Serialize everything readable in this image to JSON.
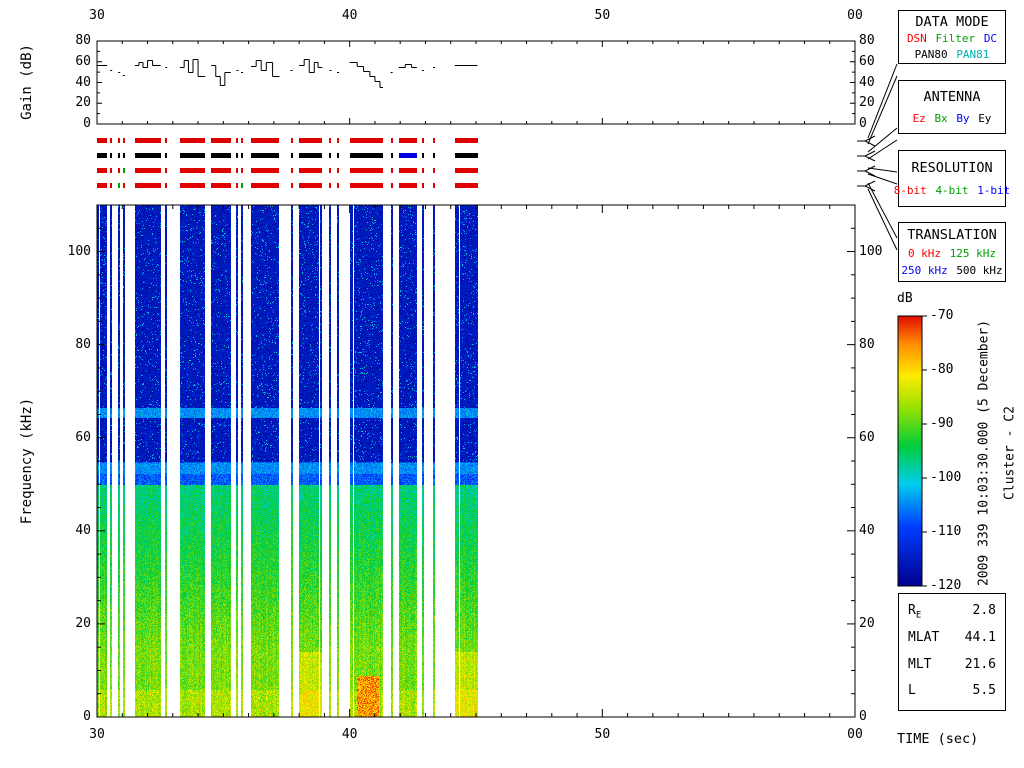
{
  "page": {
    "background": "#ffffff"
  },
  "annotations": {
    "datetime_vertical": "2009 339 10:03:30.000 (5 December)",
    "spacecraft_vertical": "Cluster - C2"
  },
  "legend": {
    "data_mode": {
      "title": "DATA MODE",
      "row1": [
        {
          "text": "DSN",
          "color": "#ff0000"
        },
        {
          "text": "Filter",
          "color": "#00a000"
        },
        {
          "text": "DC",
          "color": "#0000ff"
        }
      ],
      "row2": [
        {
          "text": "PAN80",
          "color": "#000000"
        },
        {
          "text": "PAN81",
          "color": "#00b0b0"
        }
      ]
    },
    "antenna": {
      "title": "ANTENNA",
      "row1": [
        {
          "text": "Ez",
          "color": "#ff0000"
        },
        {
          "text": "Bx",
          "color": "#00a000"
        },
        {
          "text": "By",
          "color": "#0000ff"
        },
        {
          "text": "Ey",
          "color": "#000000"
        }
      ]
    },
    "resolution": {
      "title": "RESOLUTION",
      "row1": [
        {
          "text": "8-bit",
          "color": "#ff0000"
        },
        {
          "text": "4-bit",
          "color": "#00a000"
        },
        {
          "text": "1-bit",
          "color": "#0000ff"
        }
      ]
    },
    "translation": {
      "title": "TRANSLATION",
      "row1": [
        {
          "text": "0 kHz",
          "color": "#ff0000"
        },
        {
          "text": "125 kHz",
          "color": "#00a000"
        }
      ],
      "row2": [
        {
          "text": "250 kHz",
          "color": "#0000ff"
        },
        {
          "text": "500 kHz",
          "color": "#000000"
        }
      ]
    }
  },
  "ephemeris": {
    "rows": [
      {
        "label": "R",
        "sub": "E",
        "value": "2.8"
      },
      {
        "label": "MLAT",
        "sub": "",
        "value": "44.1"
      },
      {
        "label": "MLT",
        "sub": "",
        "value": "21.6"
      },
      {
        "label": "L",
        "sub": "",
        "value": "5.5"
      }
    ]
  },
  "status_rows": [
    {
      "name": "data-mode-activity",
      "color": "#e00000",
      "overrides": []
    },
    {
      "name": "antenna-activity",
      "color": "#000000",
      "overrides": [
        {
          "t0": 41.9,
          "t1": 42.7,
          "color": "#0000e0"
        }
      ]
    },
    {
      "name": "resolution-activity",
      "color": "#e00000",
      "overrides": [
        {
          "t0": 30.95,
          "t1": 31.15,
          "color": "#00a000"
        }
      ]
    },
    {
      "name": "translation-activity",
      "color": "#e00000",
      "overrides": [
        {
          "t0": 30.78,
          "t1": 30.95,
          "color": "#00a000"
        },
        {
          "t0": 35.6,
          "t1": 35.85,
          "color": "#00a000"
        }
      ]
    }
  ],
  "chart_data": [
    {
      "type": "line",
      "name": "gain-panel",
      "ylabel": "Gain (dB)",
      "ylim": [
        0,
        80
      ],
      "yticks": [
        0,
        20,
        40,
        60,
        80
      ],
      "xlim": [
        30,
        60
      ],
      "segments": [
        [
          [
            30.0,
            57
          ],
          [
            30.4,
            57
          ]
        ],
        [
          [
            30.52,
            52
          ],
          [
            30.6,
            52
          ]
        ],
        [
          [
            30.84,
            50
          ],
          [
            30.92,
            50
          ]
        ],
        [
          [
            31.02,
            47
          ],
          [
            31.1,
            47
          ]
        ],
        [
          [
            31.5,
            57
          ],
          [
            31.66,
            60
          ],
          [
            31.82,
            55
          ],
          [
            32.0,
            62
          ],
          [
            32.2,
            57
          ],
          [
            32.52,
            57
          ]
        ],
        [
          [
            32.7,
            55
          ],
          [
            32.78,
            55
          ]
        ],
        [
          [
            33.28,
            55
          ],
          [
            33.45,
            62
          ],
          [
            33.62,
            50
          ],
          [
            33.8,
            63
          ],
          [
            34.0,
            46
          ],
          [
            34.28,
            46
          ]
        ],
        [
          [
            34.52,
            57
          ],
          [
            34.7,
            46
          ],
          [
            34.88,
            38
          ],
          [
            35.06,
            50
          ],
          [
            35.3,
            50
          ]
        ],
        [
          [
            35.52,
            52
          ],
          [
            35.6,
            52
          ]
        ],
        [
          [
            35.7,
            50
          ],
          [
            35.78,
            50
          ]
        ],
        [
          [
            36.1,
            56
          ],
          [
            36.3,
            62
          ],
          [
            36.5,
            52
          ],
          [
            36.7,
            60
          ],
          [
            36.95,
            46
          ],
          [
            37.22,
            46
          ]
        ],
        [
          [
            37.66,
            52
          ],
          [
            37.74,
            52
          ]
        ],
        [
          [
            38.0,
            57
          ],
          [
            38.2,
            63
          ],
          [
            38.4,
            50
          ],
          [
            38.6,
            60
          ],
          [
            38.75,
            55
          ],
          [
            38.92,
            55
          ]
        ],
        [
          [
            39.2,
            52
          ],
          [
            39.28,
            52
          ]
        ],
        [
          [
            39.5,
            50
          ],
          [
            39.58,
            50
          ]
        ],
        [
          [
            40.0,
            60
          ],
          [
            40.3,
            56
          ],
          [
            40.55,
            51
          ],
          [
            40.8,
            46
          ],
          [
            41.0,
            41
          ],
          [
            41.2,
            36
          ],
          [
            41.32,
            36
          ]
        ],
        [
          [
            41.62,
            50
          ],
          [
            41.7,
            50
          ]
        ],
        [
          [
            41.94,
            55
          ],
          [
            42.2,
            58
          ],
          [
            42.45,
            55
          ],
          [
            42.66,
            55
          ]
        ],
        [
          [
            42.86,
            52
          ],
          [
            42.94,
            52
          ]
        ],
        [
          [
            43.3,
            55
          ],
          [
            43.38,
            55
          ]
        ],
        [
          [
            44.16,
            57
          ],
          [
            45.06,
            57
          ]
        ]
      ]
    },
    {
      "type": "heatmap",
      "name": "spectrogram-panel",
      "ylabel": "Frequency (kHz)",
      "xlabel": "TIME (sec)",
      "ylim": [
        0,
        110
      ],
      "yticks": [
        0,
        20,
        40,
        60,
        80,
        100
      ],
      "xlim": [
        30,
        60
      ],
      "xticks": {
        "values": [
          30,
          40,
          50,
          60
        ],
        "labels": [
          "30",
          "40",
          "50",
          "00"
        ]
      },
      "colorbar": {
        "label": "dB",
        "max": -70,
        "min": -120,
        "ticks": [
          -70,
          -80,
          -90,
          -100,
          -110,
          -120
        ]
      },
      "spectral_lines_khz": [
        65.5,
        53.5
      ],
      "bursts": [
        {
          "t0": 30.0,
          "t1": 30.4
        },
        {
          "t0": 30.52,
          "t1": 30.6
        },
        {
          "t0": 30.84,
          "t1": 30.92
        },
        {
          "t0": 31.02,
          "t1": 31.1
        },
        {
          "t0": 31.5,
          "t1": 32.52
        },
        {
          "t0": 32.7,
          "t1": 32.78
        },
        {
          "t0": 33.28,
          "t1": 34.28
        },
        {
          "t0": 34.52,
          "t1": 35.3
        },
        {
          "t0": 35.52,
          "t1": 35.6
        },
        {
          "t0": 35.7,
          "t1": 35.78
        },
        {
          "t0": 36.1,
          "t1": 37.22
        },
        {
          "t0": 37.66,
          "t1": 37.74
        },
        {
          "t0": 38.0,
          "t1": 38.92,
          "warm": true
        },
        {
          "t0": 39.2,
          "t1": 39.28
        },
        {
          "t0": 39.5,
          "t1": 39.58
        },
        {
          "t0": 40.0,
          "t1": 41.32,
          "hot": true
        },
        {
          "t0": 41.62,
          "t1": 41.7
        },
        {
          "t0": 41.94,
          "t1": 42.66
        },
        {
          "t0": 42.86,
          "t1": 42.94
        },
        {
          "t0": 43.3,
          "t1": 43.38
        },
        {
          "t0": 44.16,
          "t1": 45.06,
          "warm": true
        }
      ]
    }
  ]
}
